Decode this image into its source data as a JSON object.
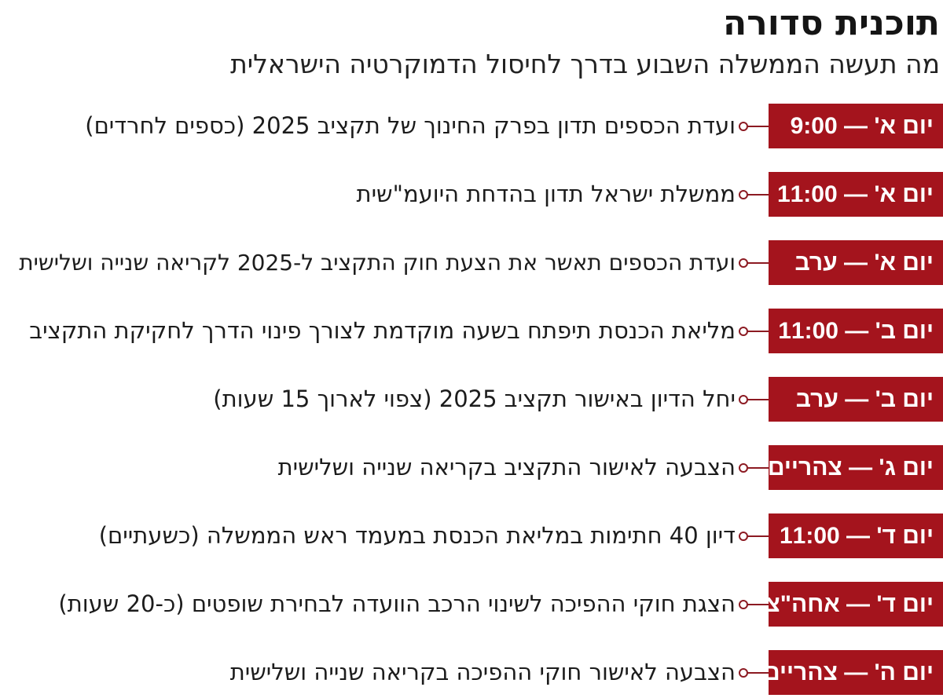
{
  "header": {
    "title": "תוכנית סדורה",
    "subtitle": "מה תעשה הממשלה השבוע בדרך לחיסול הדמוקרטיה הישראלית"
  },
  "colors": {
    "badge_background": "#a4141d",
    "badge_text": "#ffffff",
    "connector": "#8c1a22"
  },
  "schedule": {
    "items": [
      {
        "time": "יום א' — 9:00",
        "event": "ועדת הכספים תדון בפרק החינוך של תקציב 2025 (כספים לחרדים)"
      },
      {
        "time": "יום א' — 11:00",
        "event": "ממשלת ישראל תדון בהדחת היועמ\"שית"
      },
      {
        "time": "יום א' — ערב",
        "event": "ועדת הכספים תאשר את הצעת חוק התקציב ל-2025 לקריאה שנייה ושלישית"
      },
      {
        "time": "יום ב' — 11:00",
        "event": "מליאת הכנסת תיפתח בשעה מוקדמת לצורך פינוי הדרך לחקיקת התקציב"
      },
      {
        "time": "יום ב' — ערב",
        "event": "יחל הדיון באישור תקציב 2025 (צפוי לארוך 15 שעות)"
      },
      {
        "time": "יום ג' — צהריים",
        "event": "הצבעה לאישור התקציב בקריאה שנייה ושלישית"
      },
      {
        "time": "יום ד' — 11:00",
        "event": "דיון 40 חתימות במליאת הכנסת במעמד ראש הממשלה (כשעתיים)"
      },
      {
        "time": "יום ד' — אחה\"צ",
        "event": "הצגת חוקי ההפיכה לשינוי הרכב הוועדה לבחירת שופטים (כ-20 שעות)"
      },
      {
        "time": "יום ה' — צהריים",
        "event": "הצבעה לאישור חוקי ההפיכה בקריאה שנייה ושלישית"
      }
    ]
  }
}
